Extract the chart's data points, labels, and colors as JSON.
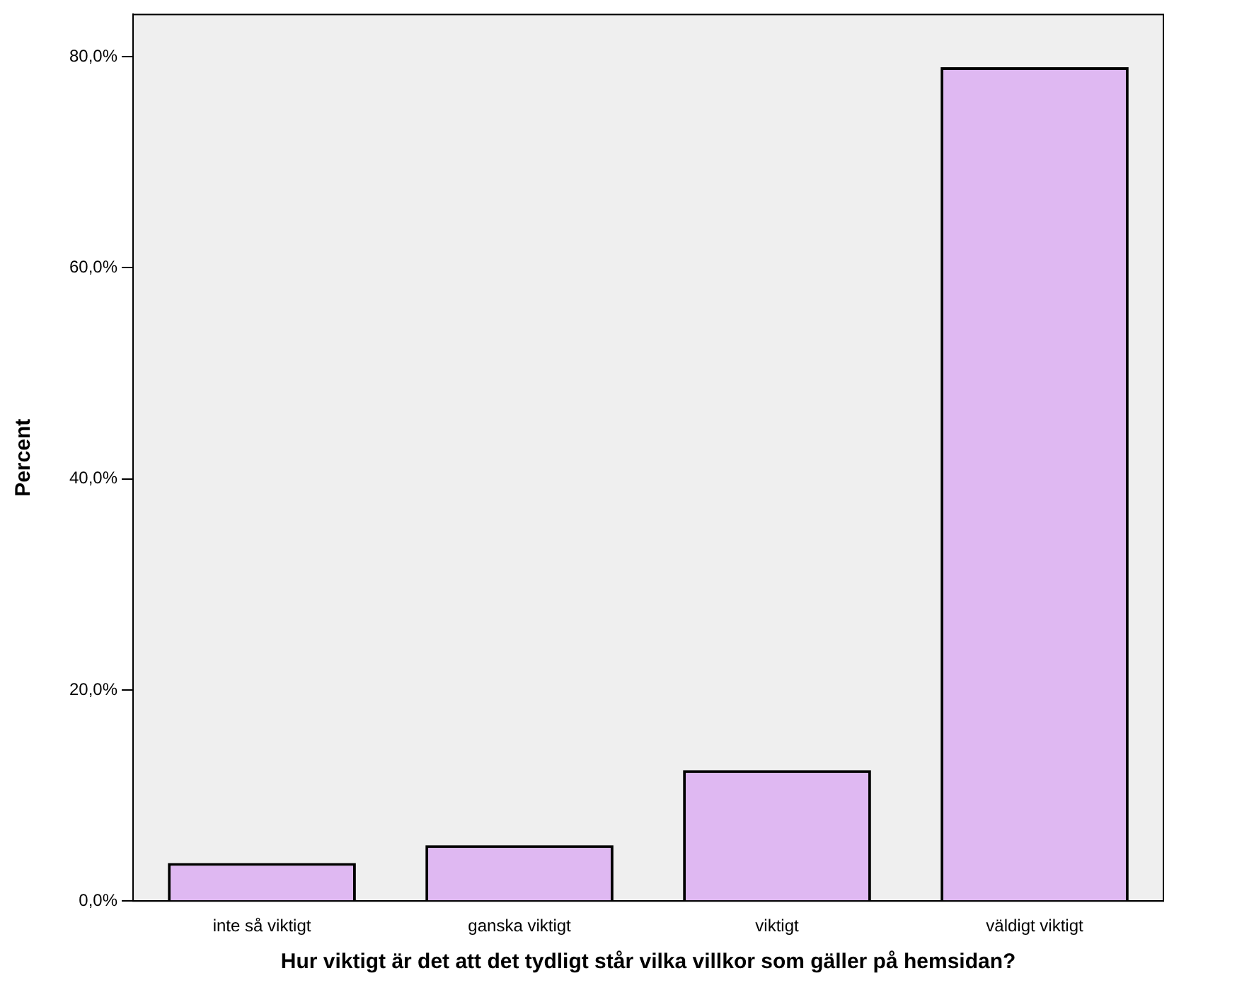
{
  "chart_data": {
    "type": "bar",
    "xlabel": "Hur viktigt är det att det tydligt står vilka villkor som gäller på hemsidan?",
    "ylabel": "Percent",
    "categories": [
      "inte så viktigt",
      "ganska viktigt",
      "viktigt",
      "väldigt viktigt"
    ],
    "values": [
      3.6,
      5.3,
      12.4,
      79.0
    ],
    "color": "#dfb8f2",
    "ylim": [
      0,
      84
    ],
    "yticks": [
      {
        "value": 0,
        "label": "0,0%"
      },
      {
        "value": 20,
        "label": "20,0%"
      },
      {
        "value": 40,
        "label": "40,0%"
      },
      {
        "value": 60,
        "label": "60,0%"
      },
      {
        "value": 80,
        "label": "80,0%"
      }
    ],
    "grid": false,
    "legend": false
  }
}
